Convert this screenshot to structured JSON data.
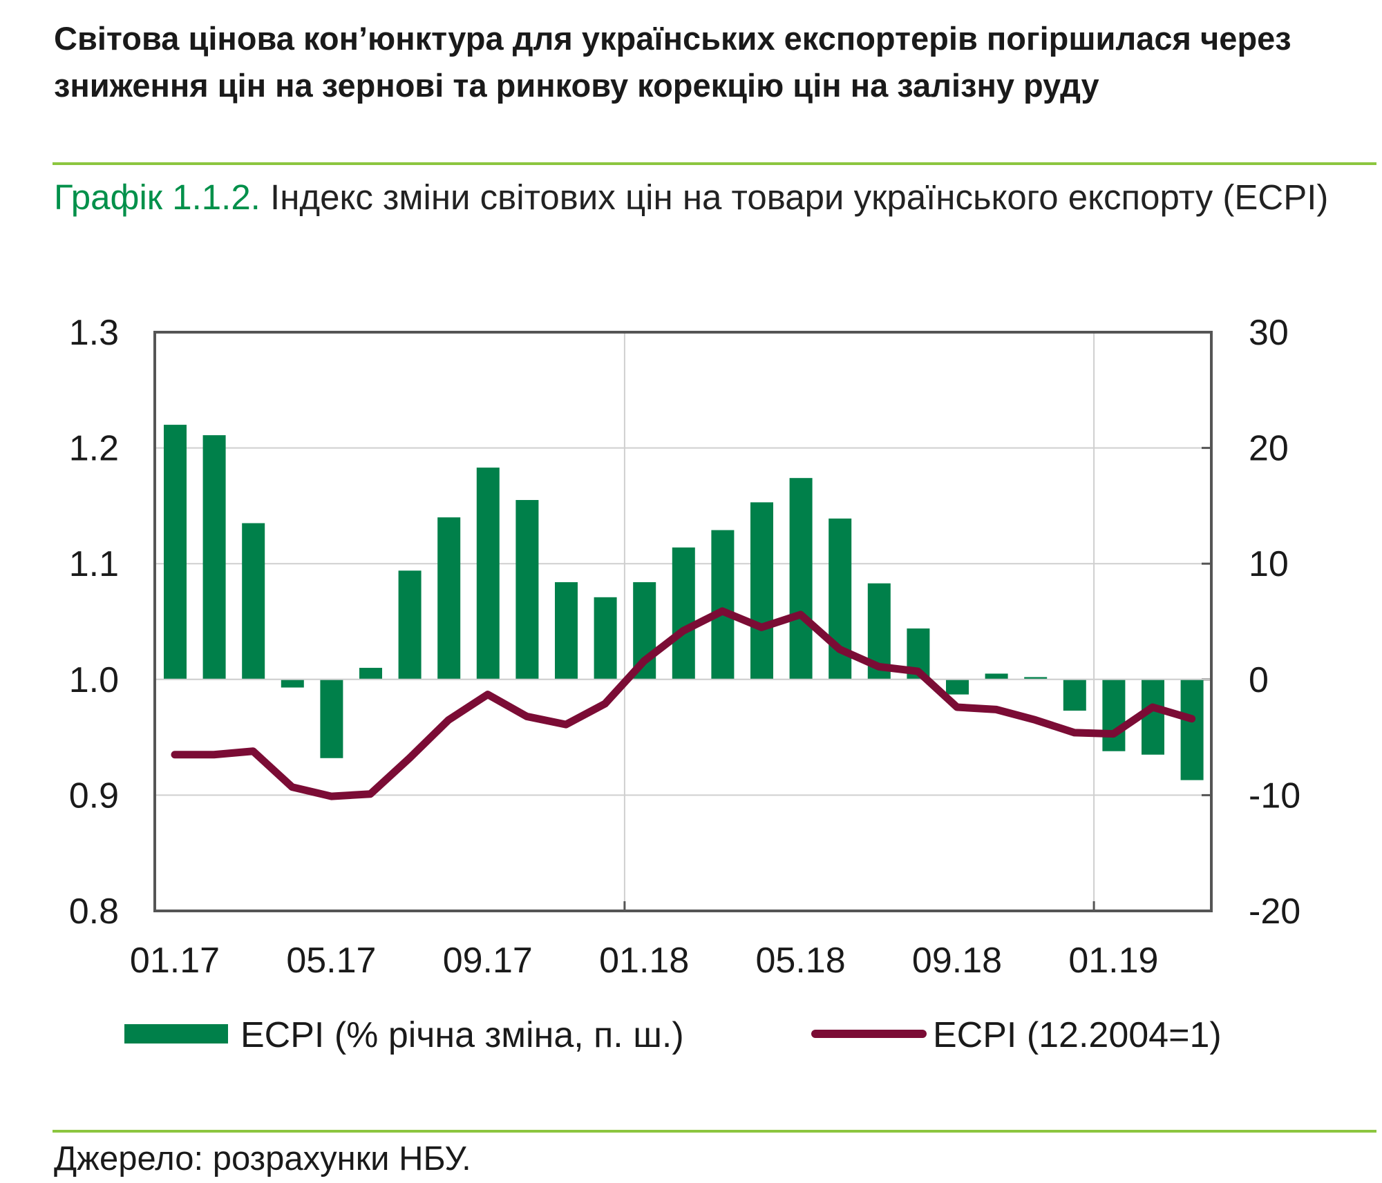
{
  "header": {
    "title": "Світова цінова кон’юнктура для українських експортерів погіршилася через зниження цін на зернові та ринкову корекцію цін на залізну руду",
    "chart_number": "Графік 1.1.2.",
    "chart_caption": "Індекс  зміни світових цін на товари українського експорту (ECPI)"
  },
  "source": "Джерело: розрахунки НБУ.",
  "colors": {
    "bars": "#00804a",
    "line": "#7b0c35",
    "rule": "#8cc63f",
    "title_number": "#00904a"
  },
  "chart_data": {
    "type": "bar+line",
    "categories": [
      "01.17",
      "02.17",
      "03.17",
      "04.17",
      "05.17",
      "06.17",
      "07.17",
      "08.17",
      "09.17",
      "10.17",
      "11.17",
      "12.17",
      "01.18",
      "02.18",
      "03.18",
      "04.18",
      "05.18",
      "06.18",
      "07.18",
      "08.18",
      "09.18",
      "10.18",
      "11.18",
      "12.18",
      "01.19",
      "02.19",
      "03.19"
    ],
    "x_tick_labels": [
      "01.17",
      "05.17",
      "09.17",
      "01.18",
      "05.18",
      "09.18",
      "01.19"
    ],
    "series": [
      {
        "name": "ECPI (% річна зміна, п. ш.)",
        "type": "bar",
        "axis": "right",
        "values": [
          22.0,
          21.1,
          13.5,
          -0.7,
          -6.8,
          1.0,
          9.4,
          14.0,
          18.3,
          15.5,
          8.4,
          7.1,
          8.4,
          11.4,
          12.9,
          15.3,
          17.4,
          13.9,
          8.3,
          4.4,
          -1.3,
          0.5,
          0.2,
          -2.7,
          -6.2,
          -6.5,
          -8.7
        ]
      },
      {
        "name": "ECPI (12.2004=1)",
        "type": "line",
        "axis": "left",
        "values": [
          0.935,
          0.935,
          0.938,
          0.907,
          0.899,
          0.901,
          0.932,
          0.965,
          0.987,
          0.968,
          0.961,
          0.979,
          1.016,
          1.042,
          1.059,
          1.045,
          1.056,
          1.026,
          1.011,
          1.007,
          0.976,
          0.974,
          0.965,
          0.954,
          0.953,
          0.976,
          0.966
        ]
      }
    ],
    "y_left": {
      "ylim": [
        0.8,
        1.3
      ],
      "ticks": [
        "0.8",
        "0.9",
        "1.0",
        "1.1",
        "1.2",
        "1.3"
      ]
    },
    "y_right": {
      "ylim": [
        -20,
        30
      ],
      "ticks": [
        "-20",
        "-10",
        "0",
        "10",
        "20",
        "30"
      ]
    },
    "grid": true,
    "legend": "bottom"
  }
}
